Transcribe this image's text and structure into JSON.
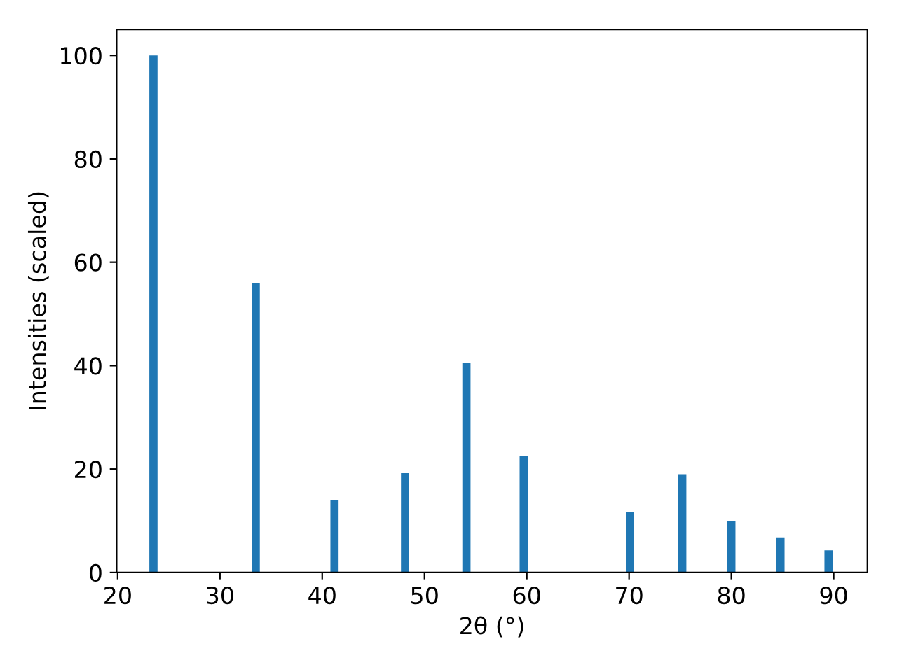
{
  "chart_data": {
    "type": "bar",
    "xlabel": "2θ (°)",
    "ylabel": "Intensities (scaled)",
    "x": [
      23.5,
      33.5,
      41.2,
      48.1,
      54.1,
      59.7,
      70.1,
      75.2,
      80.0,
      84.8,
      89.5
    ],
    "values": [
      100,
      56,
      14,
      19.2,
      40.6,
      22.6,
      11.7,
      19,
      10,
      6.8,
      4.3
    ],
    "color": "#1f77b4",
    "xlim": [
      19.9,
      93.3
    ],
    "xticks": [
      20,
      30,
      40,
      50,
      60,
      70,
      80,
      90
    ],
    "ylim": [
      0,
      105
    ],
    "yticks": [
      0,
      20,
      40,
      60,
      80,
      100
    ],
    "grid": false,
    "legend": false
  }
}
